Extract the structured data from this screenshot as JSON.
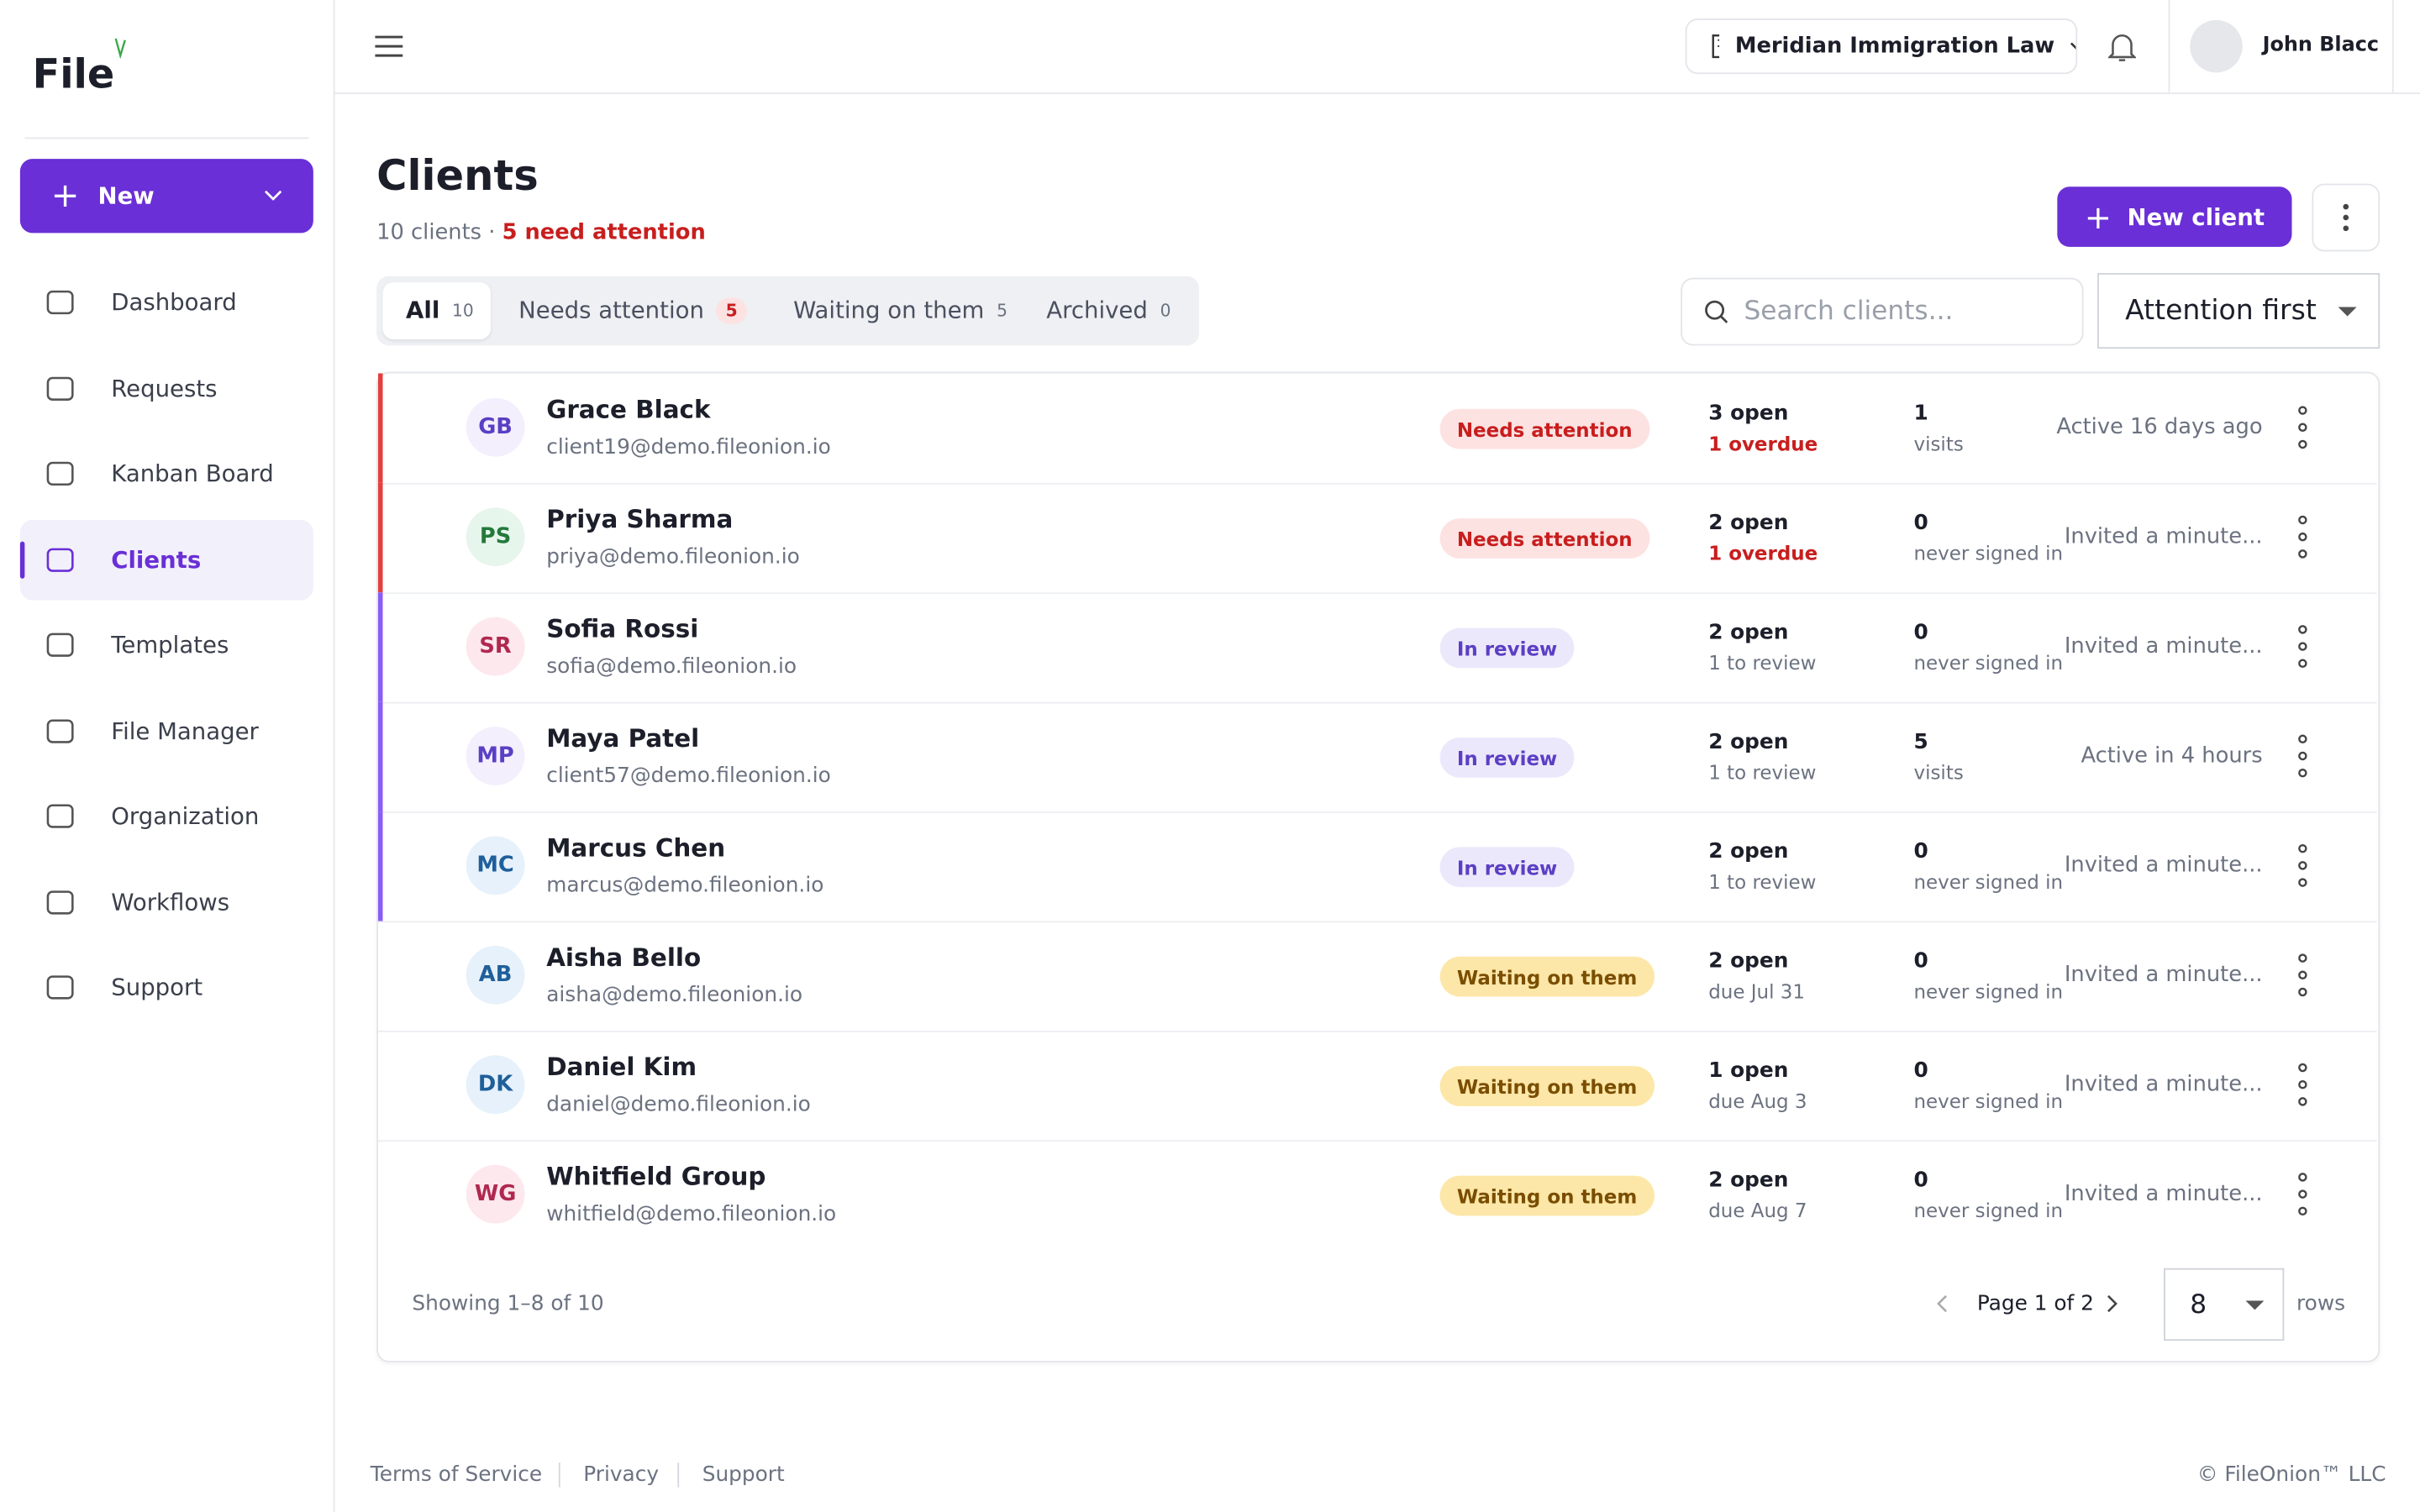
{
  "brand": "File",
  "new_button": "New",
  "nav": [
    "Dashboard",
    "Requests",
    "Kanban Board",
    "Clients",
    "Templates",
    "File Manager",
    "Organization",
    "Workflows",
    "Support"
  ],
  "topbar": {
    "org": "Meridian Immigration Law",
    "user": "John Blacc"
  },
  "page": {
    "title": "Clients",
    "count": "10 clients",
    "attention": "5 need attention",
    "new_client": "New client"
  },
  "tabs": [
    {
      "label": "All",
      "count": 10
    },
    {
      "label": "Needs attention",
      "count": 5
    },
    {
      "label": "Waiting on them",
      "count": 5
    },
    {
      "label": "Archived",
      "count": 0
    }
  ],
  "search_placeholder": "Search clients...",
  "sort": "Attention first",
  "rows": [
    {
      "initials": "GB",
      "tone": "purple",
      "name": "Grace Black",
      "email": "client19@demo.fileonion.io",
      "status": "Needs attention",
      "open": "3 open",
      "sub": "1 overdue",
      "count": 1,
      "count_label": "visits",
      "activity": "Active 16 days ago"
    },
    {
      "initials": "PS",
      "tone": "green",
      "name": "Priya Sharma",
      "email": "priya@demo.fileonion.io",
      "status": "Needs attention",
      "open": "2 open",
      "sub": "1 overdue",
      "count": 0,
      "count_label": "never signed in",
      "activity": "Invited a minute..."
    },
    {
      "initials": "SR",
      "tone": "pink",
      "name": "Sofia Rossi",
      "email": "sofia@demo.fileonion.io",
      "status": "In review",
      "open": "2 open",
      "sub": "1 to review",
      "count": 0,
      "count_label": "never signed in",
      "activity": "Invited a minute..."
    },
    {
      "initials": "MP",
      "tone": "purple",
      "name": "Maya Patel",
      "email": "client57@demo.fileonion.io",
      "status": "In review",
      "open": "2 open",
      "sub": "1 to review",
      "count": 5,
      "count_label": "visits",
      "activity": "Active in 4 hours"
    },
    {
      "initials": "MC",
      "tone": "blue",
      "name": "Marcus Chen",
      "email": "marcus@demo.fileonion.io",
      "status": "In review",
      "open": "2 open",
      "sub": "1 to review",
      "count": 0,
      "count_label": "never signed in",
      "activity": "Invited a minute..."
    },
    {
      "initials": "AB",
      "tone": "blue",
      "name": "Aisha Bello",
      "email": "aisha@demo.fileonion.io",
      "status": "Waiting on them",
      "open": "2 open",
      "sub": "due Jul 31",
      "count": 0,
      "count_label": "never signed in",
      "activity": "Invited a minute..."
    },
    {
      "initials": "DK",
      "tone": "blue",
      "name": "Daniel Kim",
      "email": "daniel@demo.fileonion.io",
      "status": "Waiting on them",
      "open": "1 open",
      "sub": "due Aug 3",
      "count": 0,
      "count_label": "never signed in",
      "activity": "Invited a minute..."
    },
    {
      "initials": "WG",
      "tone": "pink",
      "name": "Whitfield Group",
      "email": "whitfield@demo.fileonion.io",
      "status": "Waiting on them",
      "open": "2 open",
      "sub": "due Aug 7",
      "count": 0,
      "count_label": "never signed in",
      "activity": "Invited a minute..."
    }
  ],
  "footer": {
    "showing": "Showing 1–8 of 10",
    "page": "Page 1 of 2",
    "rows_per_page": 8,
    "rows_label": "rows"
  },
  "links": [
    "Terms of Service",
    "Privacy",
    "Support"
  ],
  "copyright": "© FileOnion™ LLC"
}
